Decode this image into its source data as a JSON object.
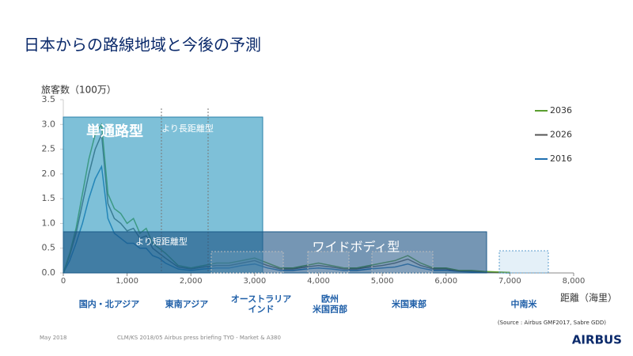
{
  "title": "日本からの路線地域と今後の予測",
  "chart_data": {
    "type": "line",
    "y_label": "旅客数（100万）",
    "x_label": "距離（海里）",
    "x": [
      0,
      100,
      200,
      300,
      400,
      500,
      600,
      700,
      800,
      900,
      1000,
      1100,
      1200,
      1300,
      1400,
      1500,
      1600,
      1800,
      2000,
      2200,
      2400,
      2600,
      2800,
      3000,
      3200,
      3400,
      3600,
      3800,
      4000,
      4200,
      4400,
      4600,
      4800,
      5000,
      5200,
      5400,
      5600,
      5800,
      6000,
      6200,
      6400,
      6600,
      6800,
      7000
    ],
    "series": [
      {
        "name": "2036",
        "color": "#5a9e2f",
        "values": [
          0,
          0.4,
          0.9,
          1.6,
          2.3,
          2.8,
          3.0,
          1.6,
          1.3,
          1.2,
          1.0,
          1.1,
          0.8,
          0.9,
          0.6,
          0.5,
          0.4,
          0.15,
          0.1,
          0.15,
          0.2,
          0.2,
          0.25,
          0.3,
          0.2,
          0.1,
          0.1,
          0.15,
          0.2,
          0.15,
          0.1,
          0.1,
          0.15,
          0.2,
          0.25,
          0.35,
          0.2,
          0.1,
          0.1,
          0.05,
          0.05,
          0.03,
          0.02,
          0.01
        ]
      },
      {
        "name": "2026",
        "color": "#555555",
        "values": [
          0,
          0.35,
          0.8,
          1.4,
          2.0,
          2.5,
          2.8,
          1.4,
          1.1,
          1.0,
          0.85,
          0.9,
          0.7,
          0.75,
          0.5,
          0.4,
          0.3,
          0.12,
          0.08,
          0.12,
          0.15,
          0.15,
          0.2,
          0.25,
          0.15,
          0.08,
          0.08,
          0.12,
          0.15,
          0.12,
          0.08,
          0.08,
          0.12,
          0.15,
          0.2,
          0.28,
          0.15,
          0.08,
          0.08,
          0.04,
          0.04,
          0.02,
          0.01,
          0.01
        ]
      },
      {
        "name": "2016",
        "color": "#1f6fb0",
        "values": [
          0,
          0.25,
          0.6,
          1.0,
          1.5,
          1.9,
          2.15,
          1.1,
          0.8,
          0.7,
          0.6,
          0.6,
          0.5,
          0.5,
          0.35,
          0.3,
          0.2,
          0.08,
          0.05,
          0.08,
          0.1,
          0.1,
          0.15,
          0.18,
          0.1,
          0.05,
          0.05,
          0.08,
          0.1,
          0.08,
          0.05,
          0.05,
          0.08,
          0.1,
          0.12,
          0.18,
          0.1,
          0.05,
          0.05,
          0.03,
          0.02,
          0.01,
          0.01,
          0
        ]
      }
    ],
    "xlim": [
      0,
      8000
    ],
    "ylim": [
      0,
      3.5
    ],
    "xticks": [
      0,
      {
        "value": 1000,
        "label": "1,000"
      },
      {
        "value": 2000,
        "label": "2,000"
      },
      {
        "value": 3000,
        "label": "3,000"
      },
      {
        "value": 4000,
        "label": "4,000"
      },
      {
        "value": 5000,
        "label": "5,000"
      },
      {
        "value": 6000,
        "label": "6,000"
      },
      {
        "value": 7000,
        "label": "7,000"
      },
      {
        "value": 8000,
        "label": "8,000"
      }
    ],
    "yticks": [
      {
        "value": 0,
        "label": "0.0"
      },
      0.5,
      {
        "value": 1,
        "label": "1.0"
      },
      1.5,
      {
        "value": 2,
        "label": "2.0"
      },
      2.5,
      {
        "value": 3,
        "label": "3.0"
      },
      3.5
    ],
    "legend": "upper right",
    "annotations": {
      "single_aisle": "単通路型",
      "longer_range": "より長距離型",
      "shorter_range": "より短距離型",
      "widebody": "ワイドボディ型"
    },
    "regions": [
      [
        "国内・北アジア"
      ],
      [
        "東南アジア"
      ],
      [
        "オーストラリア",
        "インド"
      ],
      [
        "欧州",
        "米国西部"
      ],
      [
        "米国東部"
      ],
      [
        "中南米"
      ]
    ]
  },
  "footer": {
    "date": "May 2018",
    "ref": "CLM/KS 2018/05 Airbus press briefing TYO - Market & A380",
    "source": "(Source : Airbus GMF2017, Sabre GDD)",
    "logo": "AIRBUS"
  }
}
